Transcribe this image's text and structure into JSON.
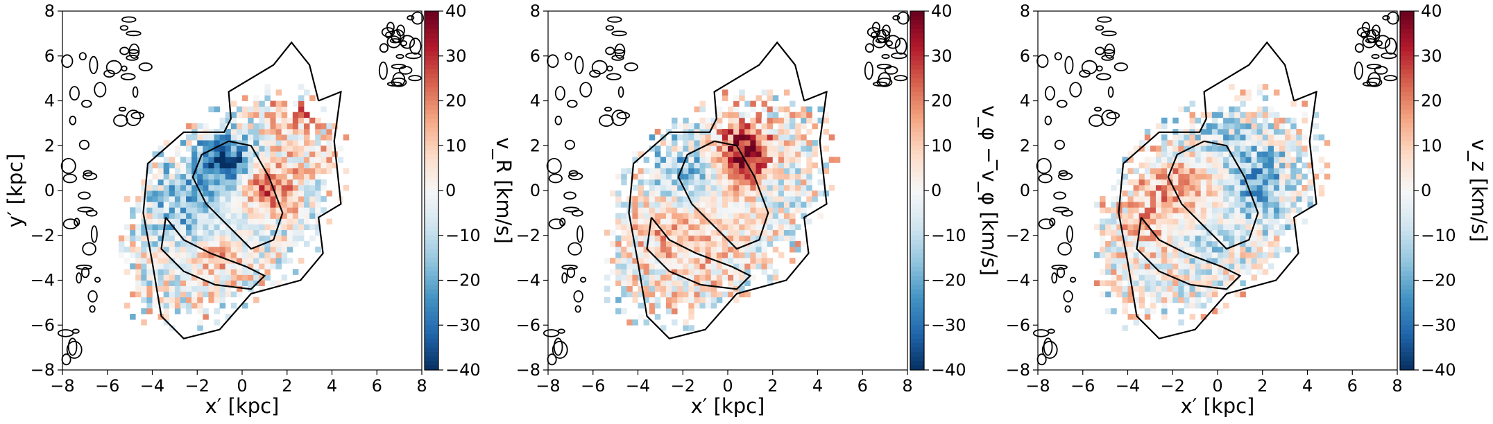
{
  "chart_data": [
    {
      "type": "heatmap",
      "quantity": "vR",
      "xlabel": "x′ [kpc]",
      "ylabel": "y′ [kpc]",
      "colorbar_label": "v_R [km/s]",
      "xlim": [
        -8,
        8
      ],
      "ylim": [
        -8,
        8
      ],
      "xticks": [
        -8,
        -6,
        -4,
        -2,
        0,
        2,
        4,
        6,
        8
      ],
      "yticks": [
        -8,
        -6,
        -4,
        -2,
        0,
        2,
        4,
        6,
        8
      ],
      "clim": [
        -40,
        40
      ],
      "cticks": [
        40,
        30,
        20,
        10,
        0,
        -10,
        -20,
        -30,
        -40
      ],
      "colormap": "RdBu_r",
      "bin_size_kpc": 0.25,
      "features": [
        {
          "x": -0.8,
          "y": 1.2,
          "amp": -36,
          "sx": 0.9,
          "sy": 0.9
        },
        {
          "x": 1.0,
          "y": 0.0,
          "amp": 28,
          "sx": 0.9,
          "sy": 0.8
        },
        {
          "x": -2.7,
          "y": -0.8,
          "amp": -18,
          "sx": 1.0,
          "sy": 1.4
        },
        {
          "x": -1.2,
          "y": -3.0,
          "amp": 14,
          "sx": 1.0,
          "sy": 0.8
        },
        {
          "x": 0.0,
          "y": -1.8,
          "amp": -10,
          "sx": 1.2,
          "sy": 0.7
        },
        {
          "x": 2.5,
          "y": 3.0,
          "amp": 12,
          "sx": 1.0,
          "sy": 1.0
        }
      ]
    },
    {
      "type": "heatmap",
      "quantity": "vphi",
      "xlabel": "x′ [kpc]",
      "ylabel": "",
      "colorbar_label": "v_φ − ̅v_φ [km/s]",
      "xlim": [
        -8,
        8
      ],
      "ylim": [
        -8,
        8
      ],
      "xticks": [
        -8,
        -6,
        -4,
        -2,
        0,
        2,
        4,
        6,
        8
      ],
      "yticks": [
        -8,
        -6,
        -4,
        -2,
        0,
        2,
        4,
        6,
        8
      ],
      "clim": [
        -40,
        40
      ],
      "cticks": [
        40,
        30,
        20,
        10,
        0,
        -10,
        -20,
        -30,
        -40
      ],
      "colormap": "RdBu_r",
      "bin_size_kpc": 0.25,
      "features": [
        {
          "x": 0.6,
          "y": 1.5,
          "amp": 40,
          "sx": 0.9,
          "sy": 1.1
        },
        {
          "x": -2.0,
          "y": 0.6,
          "amp": -18,
          "sx": 1.2,
          "sy": 1.0
        },
        {
          "x": -1.5,
          "y": -2.5,
          "amp": 10,
          "sx": 1.5,
          "sy": 1.5
        },
        {
          "x": 1.8,
          "y": 0.0,
          "amp": -8,
          "sx": 0.7,
          "sy": 0.7
        },
        {
          "x": -3.0,
          "y": -1.5,
          "amp": 8,
          "sx": 1.0,
          "sy": 1.0
        }
      ]
    },
    {
      "type": "heatmap",
      "quantity": "vz",
      "xlabel": "x′ [kpc]",
      "ylabel": "",
      "colorbar_label": "v_z [km/s]",
      "xlim": [
        -8,
        8
      ],
      "ylim": [
        -8,
        8
      ],
      "xticks": [
        -8,
        -6,
        -4,
        -2,
        0,
        2,
        4,
        6,
        8
      ],
      "yticks": [
        -8,
        -6,
        -4,
        -2,
        0,
        2,
        4,
        6,
        8
      ],
      "clim": [
        -40,
        40
      ],
      "cticks": [
        40,
        30,
        20,
        10,
        0,
        -10,
        -20,
        -30,
        -40
      ],
      "colormap": "RdBu_r",
      "bin_size_kpc": 0.25,
      "features": [
        {
          "x": 1.5,
          "y": 0.3,
          "amp": -22,
          "sx": 1.0,
          "sy": 1.3
        },
        {
          "x": -1.8,
          "y": 0.0,
          "amp": 14,
          "sx": 1.4,
          "sy": 1.0
        },
        {
          "x": -1.0,
          "y": -2.5,
          "amp": -12,
          "sx": 1.0,
          "sy": 0.7
        },
        {
          "x": -3.0,
          "y": -2.0,
          "amp": 12,
          "sx": 1.0,
          "sy": 1.0
        },
        {
          "x": 0.0,
          "y": 2.5,
          "amp": -8,
          "sx": 1.0,
          "sy": 0.8
        }
      ]
    }
  ]
}
